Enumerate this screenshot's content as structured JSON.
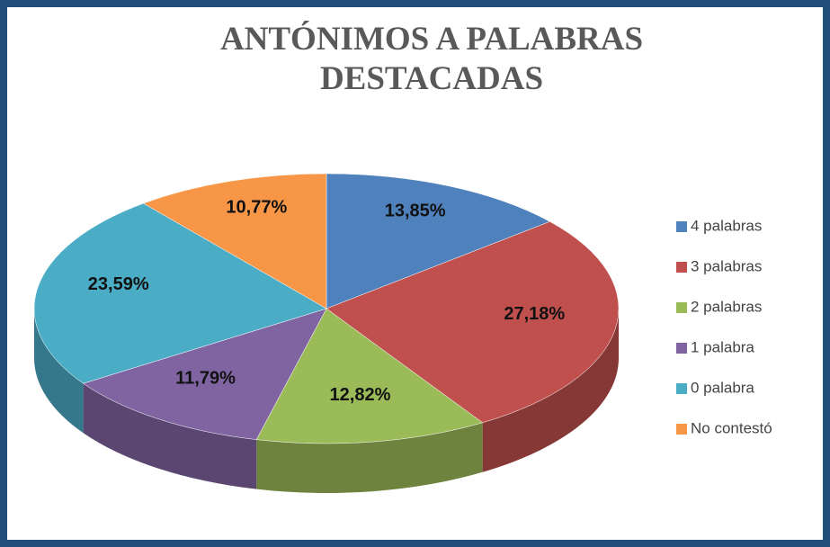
{
  "chart_data": {
    "type": "pie",
    "title": "ANTÓNIMOS A PALABRAS DESTACADAS",
    "categories": [
      "4 palabras",
      "3 palabras",
      "2 palabras",
      "1 palabra",
      "0 palabra",
      "No contestó"
    ],
    "values": [
      13.85,
      27.18,
      12.82,
      11.79,
      23.59,
      10.77
    ],
    "value_labels": [
      "13,85%",
      "27,18%",
      "12,82%",
      "11,79%",
      "23,59%",
      "10,77%"
    ],
    "colors": [
      "#4f81bd",
      "#c0504d",
      "#9bbb59",
      "#8064a2",
      "#4bacc6",
      "#f79646"
    ],
    "legend": "right"
  }
}
